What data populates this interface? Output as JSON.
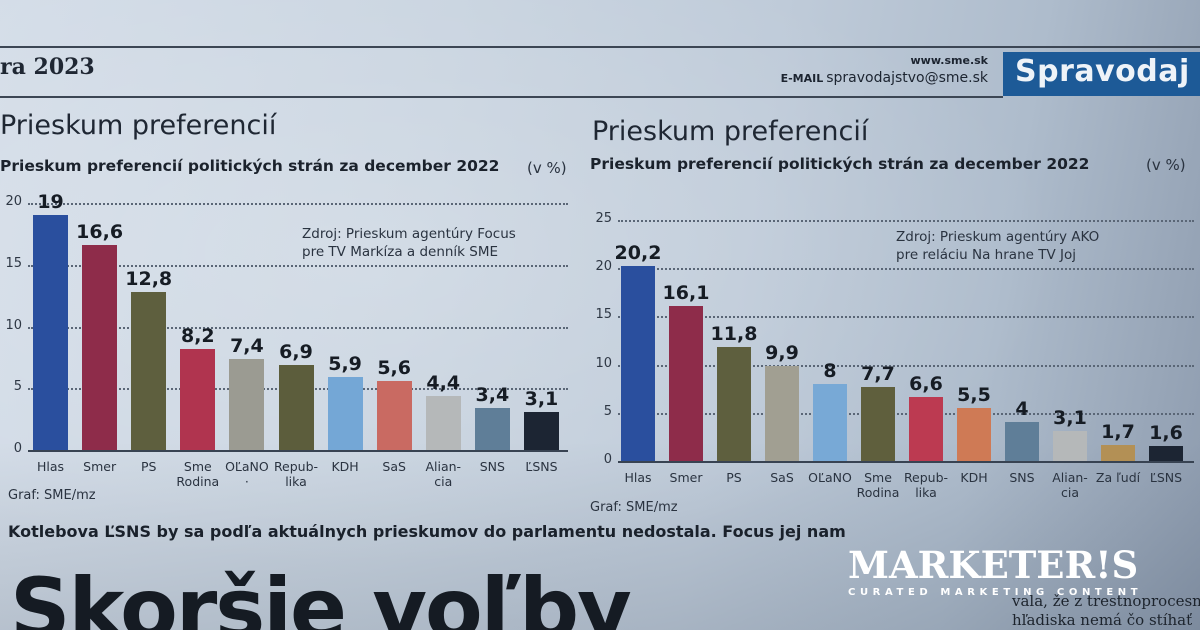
{
  "masthead": {
    "date_fragment": "ra 2023",
    "url": "www.sme.sk",
    "email_label": "E-MAIL",
    "email": "spravodajstvo@sme.sk",
    "section": "Spravodaj"
  },
  "charts": {
    "left": {
      "title": "Prieskum preferencií",
      "subtitle": "Prieskum preferencií politických strán za december 2022",
      "unit": "(v %)",
      "source_line1": "Zdroj: Prieskum agentúry Focus",
      "source_line2": "pre TV Markíza a denník SME",
      "credit": "Graf: SME/mz",
      "y_ticks": [
        "0",
        "5",
        "10",
        "15",
        "20"
      ],
      "bars": [
        {
          "label": "Hlas",
          "value": "19"
        },
        {
          "label": "Smer",
          "value": "16,6"
        },
        {
          "label": "PS",
          "value": "12,8"
        },
        {
          "label": "Sme\nRodina",
          "value": "8,2"
        },
        {
          "label": "OĽaNO\n·",
          "value": "7,4"
        },
        {
          "label": "Repub-\nlika",
          "value": "6,9"
        },
        {
          "label": "KDH",
          "value": "5,9"
        },
        {
          "label": "SaS",
          "value": "5,6"
        },
        {
          "label": "Alian-\ncia",
          "value": "4,4"
        },
        {
          "label": "SNS",
          "value": "3,4"
        },
        {
          "label": "ĽSNS",
          "value": "3,1"
        }
      ]
    },
    "right": {
      "title": "Prieskum preferencií",
      "subtitle": "Prieskum preferencií politických strán za december 2022",
      "unit": "(v %)",
      "source_line1": "Zdroj: Prieskum agentúry AKO",
      "source_line2": "pre reláciu Na hrane TV Joj",
      "credit": "Graf: SME/mz",
      "y_ticks": [
        "0",
        "5",
        "10",
        "15",
        "20",
        "25"
      ],
      "bars": [
        {
          "label": "Hlas",
          "value": "20,2"
        },
        {
          "label": "Smer",
          "value": "16,1"
        },
        {
          "label": "PS",
          "value": "11,8"
        },
        {
          "label": "SaS",
          "value": "9,9"
        },
        {
          "label": "OĽaNO",
          "value": "8"
        },
        {
          "label": "Sme\nRodina",
          "value": "7,7"
        },
        {
          "label": "Repub-\nlika",
          "value": "6,6"
        },
        {
          "label": "KDH",
          "value": "5,5"
        },
        {
          "label": "SNS",
          "value": "4"
        },
        {
          "label": "Alian-\ncia",
          "value": "3,1"
        },
        {
          "label": "Za ľudí",
          "value": "1,7"
        },
        {
          "label": "ĽSNS",
          "value": "1,6"
        }
      ]
    }
  },
  "article": {
    "caption": "Kotlebova ĽSNS by sa podľa aktuálnych prieskumov do parlamentu nedostala. Focus jej nam",
    "headline": "Skoršie voľby",
    "body_line1": "vala,  že  z trestnoprocesného",
    "body_line2": "hľadiska nemá čo stíhať"
  },
  "watermark": {
    "name": "MARKETER!S",
    "tagline": "CURATED MARKETING CONTENT"
  },
  "colors": {
    "Hlas": "#2a4f9e",
    "Smer": "#8e2c4a",
    "PS": "#5e5f3e",
    "SmeRodina": "#b0344f",
    "OLaNO_left": "#9b9b92",
    "Republika_left": "#5c5d3c",
    "KDH_left": "#74a7d6",
    "SaS_left": "#c96a62",
    "Aliancia": "#b5b8b9",
    "SNS": "#5f7e98",
    "LSNS": "#1c2533",
    "SaS_right": "#a19f92",
    "OLaNO_right": "#78a9d6",
    "SmeRodina_right": "#5f5f3d",
    "Republika_right": "#bc3a51",
    "KDH_right": "#cf7a55",
    "ZaLudi": "#b39055",
    "section_badge": "#1d5a97"
  },
  "chart_data": [
    {
      "type": "bar",
      "title": "Prieskum preferencií",
      "subtitle": "Prieskum preferencií politických strán za december 2022",
      "unit": "v %",
      "source": "Zdroj: Prieskum agentúry Focus pre TV Markíza a denník SME",
      "categories": [
        "Hlas",
        "Smer",
        "PS",
        "Sme Rodina",
        "OĽaNO",
        "Republika",
        "KDH",
        "SaS",
        "Aliancia",
        "SNS",
        "ĽSNS"
      ],
      "values": [
        19,
        16.6,
        12.8,
        8.2,
        7.4,
        6.9,
        5.9,
        5.6,
        4.4,
        3.4,
        3.1
      ],
      "xlabel": "",
      "ylabel": "v %",
      "ylim": [
        0,
        20
      ],
      "yticks": [
        0,
        5,
        10,
        15,
        20
      ],
      "grid": true,
      "data_labels": true
    },
    {
      "type": "bar",
      "title": "Prieskum preferencií",
      "subtitle": "Prieskum preferencií politických strán za december 2022",
      "unit": "v %",
      "source": "Zdroj: Prieskum agentúry AKO pre reláciu Na hrane TV Joj",
      "categories": [
        "Hlas",
        "Smer",
        "PS",
        "SaS",
        "OĽaNO",
        "Sme Rodina",
        "Republika",
        "KDH",
        "SNS",
        "Aliancia",
        "Za ľudí",
        "ĽSNS"
      ],
      "values": [
        20.2,
        16.1,
        11.8,
        9.9,
        8,
        7.7,
        6.6,
        5.5,
        4,
        3.1,
        1.7,
        1.6
      ],
      "xlabel": "",
      "ylabel": "v %",
      "ylim": [
        0,
        25
      ],
      "yticks": [
        0,
        5,
        10,
        15,
        20,
        25
      ],
      "grid": true,
      "data_labels": true
    }
  ]
}
